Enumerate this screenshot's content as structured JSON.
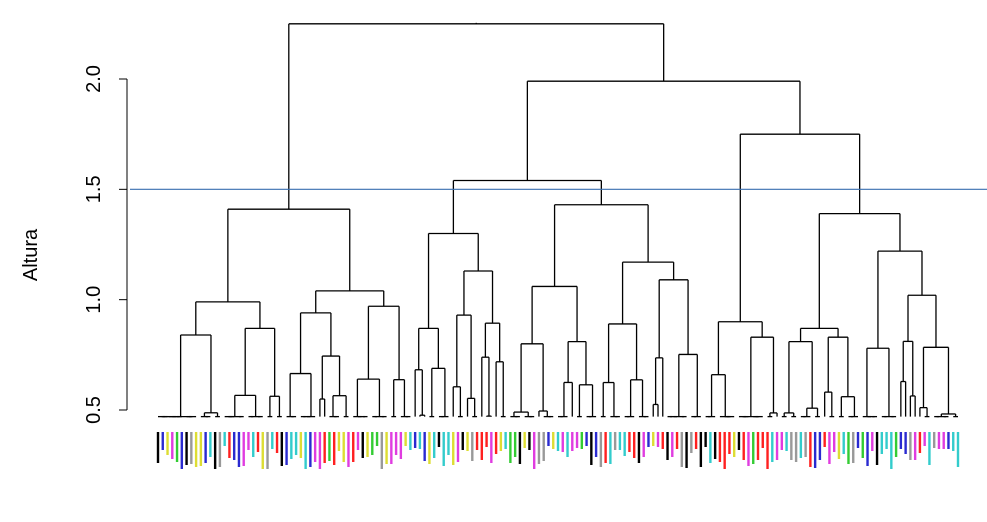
{
  "chart_data": {
    "type": "dendrogram",
    "ylabel": "Altura",
    "ylim": [
      0.3,
      2.35
    ],
    "yticks": [
      0.5,
      1.0,
      1.5,
      2.0
    ],
    "tick_labels": [
      "0.5",
      "1.0",
      "1.5",
      "2.0"
    ],
    "cut_height": 1.5,
    "cut_color": "#3a6fb0",
    "leaf_count": 160,
    "merges": [
      {
        "name": "root",
        "height": 2.25
      },
      {
        "name": "right-cluster",
        "height": 1.99
      },
      {
        "name": "left-cluster",
        "height": 1.41
      },
      {
        "name": "middle-cluster",
        "height": 1.54
      },
      {
        "name": "far-right-cluster",
        "height": 1.75
      },
      {
        "name": "middle-left",
        "height": 1.3
      },
      {
        "name": "middle-right",
        "height": 1.43
      },
      {
        "name": "far-right-left",
        "height": 0.9
      },
      {
        "name": "far-right-right",
        "height": 1.39
      },
      {
        "name": "left-a",
        "height": 0.99
      },
      {
        "name": "left-b",
        "height": 1.04
      }
    ],
    "leaf_colors": [
      "#e03ce0",
      "#2a2ad0",
      "#33cc33",
      "#000000",
      "#999999",
      "#ff2020",
      "#dddd33",
      "#33cccc"
    ]
  }
}
